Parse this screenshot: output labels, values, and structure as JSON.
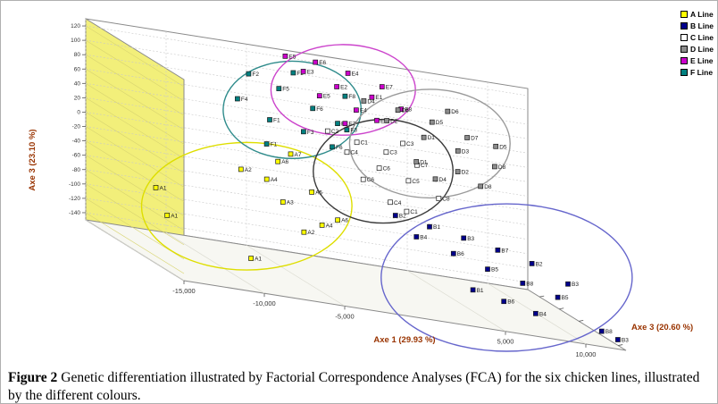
{
  "figure": {
    "caption_label": "Figure 2",
    "caption_text": "Genetic differentiation illustrated by Factorial Correspondence Analyses (FCA) for the six chicken lines, illustrated by the different colours."
  },
  "legend": {
    "position": "top-right",
    "items": [
      {
        "label": "A Line",
        "color": "#ffff00"
      },
      {
        "label": "B Line",
        "color": "#00008b"
      },
      {
        "label": "C Line",
        "color": "#ffffff"
      },
      {
        "label": "D Line",
        "color": "#8c8c8c"
      },
      {
        "label": "E Line",
        "color": "#cc00cc"
      },
      {
        "label": "F Line",
        "color": "#008080"
      }
    ]
  },
  "style_colors": {
    "axis_title": "#993300",
    "wall_left": "#f2ef7a",
    "wall_back": "#ffffff",
    "floor": "#f7f7f2",
    "grid": "#c8c8c8",
    "box_edge": "#8a8a8a"
  },
  "chart_data": {
    "type": "scatter",
    "projection": "3d",
    "title": "",
    "grid": true,
    "axes": {
      "x": {
        "label": "Axe 1 (29.93 %)",
        "range": [
          -15000,
          12500
        ],
        "ticks": [
          -15000,
          -10000,
          -5000,
          5000,
          10000
        ],
        "tick_labels": [
          "-15,000",
          "-10,000",
          "-5,000",
          "5,000",
          "10,000"
        ]
      },
      "y": {
        "label": "Axe 3 (23.10 %)",
        "range": [
          -150,
          130
        ],
        "ticks": [
          120,
          100,
          80,
          60,
          40,
          20,
          0,
          -20,
          -40,
          -60,
          -80,
          -100,
          -120,
          -140
        ]
      },
      "z": {
        "label": "Axe 3 (20.60 %)",
        "range": [
          0,
          1
        ]
      }
    },
    "series": [
      {
        "name": "A Line",
        "color": "#ffff00",
        "ellipse_color": "#dede00",
        "points": [
          {
            "label": "A1",
            "x": -14000,
            "y": -55,
            "z": 0.55
          },
          {
            "label": "A1",
            "x": -13600,
            "y": -88,
            "z": 0.6
          },
          {
            "label": "A1",
            "x": -9300,
            "y": -120,
            "z": 0.75
          },
          {
            "label": "A2",
            "x": -8400,
            "y": -14,
            "z": 0.5
          },
          {
            "label": "A4",
            "x": -7100,
            "y": -19,
            "z": 0.55
          },
          {
            "label": "A3",
            "x": -6400,
            "y": -44,
            "z": 0.6
          },
          {
            "label": "A7",
            "x": -5000,
            "y": 15,
            "z": 0.45
          },
          {
            "label": "A5",
            "x": -4300,
            "y": -27,
            "z": 0.55
          },
          {
            "label": "A6",
            "x": -3300,
            "y": -54,
            "z": 0.65
          },
          {
            "label": "A2",
            "x": -5700,
            "y": -75,
            "z": 0.7
          },
          {
            "label": "A6",
            "x": -6100,
            "y": 5,
            "z": 0.5
          },
          {
            "label": "A4",
            "x": -4700,
            "y": -60,
            "z": 0.72
          }
        ]
      },
      {
        "name": "F Line",
        "color": "#008080",
        "ellipse_color": "#2e8b8b",
        "points": [
          {
            "label": "F4",
            "x": -7700,
            "y": 74,
            "z": 0.35
          },
          {
            "label": "F2",
            "x": -6700,
            "y": 108,
            "z": 0.3
          },
          {
            "label": "F1",
            "x": -6000,
            "y": 55,
            "z": 0.4
          },
          {
            "label": "F5",
            "x": -5000,
            "y": 96,
            "z": 0.33
          },
          {
            "label": "F3",
            "x": -4200,
            "y": 49,
            "z": 0.45
          },
          {
            "label": "F6",
            "x": -3200,
            "y": 79,
            "z": 0.38
          },
          {
            "label": "F7",
            "x": -1900,
            "y": 66,
            "z": 0.42
          },
          {
            "label": "F8",
            "x": -700,
            "y": 98,
            "z": 0.3
          },
          {
            "label": "F2",
            "x": -3800,
            "y": 118,
            "z": 0.28
          },
          {
            "label": "F1",
            "x": -6800,
            "y": 27,
            "z": 0.5
          },
          {
            "label": "F6",
            "x": -2600,
            "y": 36,
            "z": 0.48
          },
          {
            "label": "F3",
            "x": -1200,
            "y": 58,
            "z": 0.4
          }
        ]
      },
      {
        "name": "E Line",
        "color": "#cc00cc",
        "ellipse_color": "#cc44cc",
        "points": [
          {
            "label": "E5",
            "x": -3200,
            "y": 128,
            "z": 0.1
          },
          {
            "label": "E3",
            "x": -2200,
            "y": 112,
            "z": 0.12
          },
          {
            "label": "E6",
            "x": -1200,
            "y": 125,
            "z": 0.08
          },
          {
            "label": "E2",
            "x": -300,
            "y": 100,
            "z": 0.15
          },
          {
            "label": "E4",
            "x": 700,
            "y": 118,
            "z": 0.1
          },
          {
            "label": "E1",
            "x": 1700,
            "y": 95,
            "z": 0.18
          },
          {
            "label": "E7",
            "x": 2700,
            "y": 108,
            "z": 0.12
          },
          {
            "label": "E8",
            "x": 3400,
            "y": 86,
            "z": 0.2
          },
          {
            "label": "E5",
            "x": -1800,
            "y": 88,
            "z": 0.22
          },
          {
            "label": "E4",
            "x": 300,
            "y": 78,
            "z": 0.25
          },
          {
            "label": "E2",
            "x": 1400,
            "y": 70,
            "z": 0.28
          },
          {
            "label": "E7",
            "x": -700,
            "y": 60,
            "z": 0.3
          }
        ]
      },
      {
        "name": "C Line",
        "color": "#ffffff",
        "ellipse_color": "#3a3a3a",
        "points": [
          {
            "label": "C2",
            "x": -2400,
            "y": 52,
            "z": 0.4
          },
          {
            "label": "C4",
            "x": -1500,
            "y": 30,
            "z": 0.45
          },
          {
            "label": "C1",
            "x": -700,
            "y": 44,
            "z": 0.42
          },
          {
            "label": "C6",
            "x": 200,
            "y": 18,
            "z": 0.5
          },
          {
            "label": "C3",
            "x": 1000,
            "y": 38,
            "z": 0.44
          },
          {
            "label": "C5",
            "x": 1900,
            "y": 8,
            "z": 0.52
          },
          {
            "label": "C7",
            "x": 2800,
            "y": 28,
            "z": 0.46
          },
          {
            "label": "C8",
            "x": 3600,
            "y": -8,
            "z": 0.55
          },
          {
            "label": "C4",
            "x": 400,
            "y": -22,
            "z": 0.58
          },
          {
            "label": "C1",
            "x": 1300,
            "y": -30,
            "z": 0.6
          },
          {
            "label": "C6",
            "x": -1100,
            "y": 2,
            "z": 0.55
          },
          {
            "label": "C3",
            "x": 2400,
            "y": 50,
            "z": 0.38
          }
        ]
      },
      {
        "name": "D Line",
        "color": "#8c8c8c",
        "ellipse_color": "#9a9a9a",
        "points": [
          {
            "label": "D4",
            "x": 1200,
            "y": 88,
            "z": 0.18
          },
          {
            "label": "D2",
            "x": 2200,
            "y": 70,
            "z": 0.25
          },
          {
            "label": "D6",
            "x": 3200,
            "y": 84,
            "z": 0.2
          },
          {
            "label": "D1",
            "x": 4200,
            "y": 58,
            "z": 0.3
          },
          {
            "label": "D5",
            "x": 5200,
            "y": 76,
            "z": 0.22
          },
          {
            "label": "D3",
            "x": 6200,
            "y": 48,
            "z": 0.32
          },
          {
            "label": "D7",
            "x": 7200,
            "y": 64,
            "z": 0.25
          },
          {
            "label": "D8",
            "x": 8300,
            "y": 36,
            "z": 0.35
          },
          {
            "label": "D2",
            "x": 5700,
            "y": 24,
            "z": 0.4
          },
          {
            "label": "D4",
            "x": 4000,
            "y": 12,
            "z": 0.45
          },
          {
            "label": "D8",
            "x": 7000,
            "y": 10,
            "z": 0.42
          },
          {
            "label": "D5",
            "x": 8800,
            "y": 60,
            "z": 0.28
          },
          {
            "label": "D1",
            "x": 3000,
            "y": 30,
            "z": 0.42
          },
          {
            "label": "D6",
            "x": 6600,
            "y": 90,
            "z": 0.15
          }
        ]
      },
      {
        "name": "B Line",
        "color": "#00008b",
        "ellipse_color": "#6666cc",
        "points": [
          {
            "label": "B2",
            "x": 600,
            "y": -38,
            "z": 0.6
          },
          {
            "label": "B4",
            "x": 1600,
            "y": -60,
            "z": 0.65
          },
          {
            "label": "B1",
            "x": 2600,
            "y": -45,
            "z": 0.62
          },
          {
            "label": "B6",
            "x": 3600,
            "y": -72,
            "z": 0.7
          },
          {
            "label": "B3",
            "x": 4600,
            "y": -52,
            "z": 0.64
          },
          {
            "label": "B5",
            "x": 5600,
            "y": -85,
            "z": 0.72
          },
          {
            "label": "B7",
            "x": 6600,
            "y": -60,
            "z": 0.66
          },
          {
            "label": "B8",
            "x": 7600,
            "y": -95,
            "z": 0.75
          },
          {
            "label": "B2",
            "x": 8600,
            "y": -70,
            "z": 0.68
          },
          {
            "label": "B5",
            "x": 9600,
            "y": -105,
            "z": 0.78
          },
          {
            "label": "B3",
            "x": 10600,
            "y": -88,
            "z": 0.72
          },
          {
            "label": "B1",
            "x": 4200,
            "y": -112,
            "z": 0.8
          },
          {
            "label": "B6",
            "x": 6000,
            "y": -120,
            "z": 0.82
          },
          {
            "label": "B4",
            "x": 7800,
            "y": -128,
            "z": 0.85
          },
          {
            "label": "B8",
            "x": 11600,
            "y": -135,
            "z": 0.9
          },
          {
            "label": "B3",
            "x": 12300,
            "y": -140,
            "z": 0.95
          }
        ]
      }
    ]
  }
}
